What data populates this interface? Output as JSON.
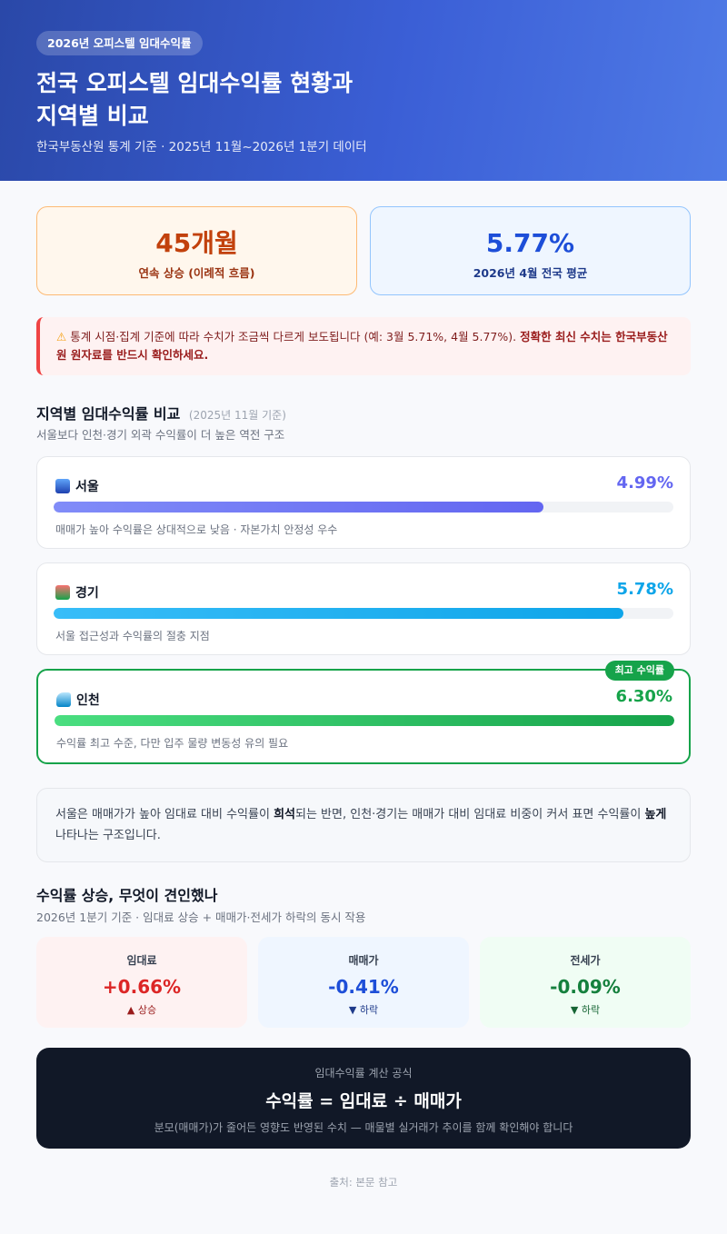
{
  "hero": {
    "badge": "2026년 오피스텔 임대수익률",
    "title_line1": "전국 오피스텔 임대수익률 현황과",
    "title_line2": "지역별 비교",
    "subtitle": "한국부동산원 통계 기준 · 2025년 11월~2026년 1분기 데이터"
  },
  "stats": [
    {
      "value": "45개월",
      "label": "연속 상승 (이례적 흐름)"
    },
    {
      "value": "5.77%",
      "label": "2026년 4월 전국 평균"
    }
  ],
  "warning": {
    "icon": "warning-icon",
    "text": "통계 시점·집계 기준에 따라 수치가 조금씩 다르게 보도됩니다 (예: 3월 5.71%, 4월 5.77%). ",
    "bold": "정확한 최신 수치는 한국부동산원 원자료를 반드시 확인하세요."
  },
  "regions_section": {
    "title": "지역별 임대수익률 비교",
    "title_note": "(2025년 11월 기준)",
    "subtitle": "서울보다 인천·경기 외곽 수익률이 더 높은 역전 구조",
    "best_badge": "최고 수익률",
    "regions": [
      {
        "name": "서울",
        "icon": "city-icon",
        "value": "4.99%",
        "fraction": 0.79,
        "desc": "매매가 높아 수익률은 상대적으로 낮음 · 자본가치 안정성 우수",
        "color": "#6366f1"
      },
      {
        "name": "경기",
        "icon": "house-icon",
        "value": "5.78%",
        "fraction": 0.92,
        "desc": "서울 접근성과 수익률의 절충 지점",
        "color": "#0ea5e9"
      },
      {
        "name": "인천",
        "icon": "wave-icon",
        "value": "6.30%",
        "fraction": 1.0,
        "desc": "수익률 최고 수준, 다만 입주 물량 변동성 유의 필요",
        "color": "#16a34a"
      }
    ]
  },
  "note": {
    "text1": "서울은 매매가가 높아 임대료 대비 수익률이 ",
    "bold1": "희석",
    "text2": "되는 반면, 인천·경기는 매매가 대비 임대료 비중이 커서 표면 수익률이 ",
    "bold2": "높게",
    "text3": " 나타나는 구조입니다."
  },
  "drivers": {
    "title": "수익률 상승, 무엇이 견인했나",
    "subtitle": "2026년 1분기 기준 · 임대료 상승 + 매매가·전세가 하락의 동시 작용",
    "cards": [
      {
        "label": "임대료",
        "value": "+0.66%",
        "trend": "▲ 상승",
        "color": "#dc2626",
        "bg": "#fef2f2"
      },
      {
        "label": "매매가",
        "value": "-0.41%",
        "trend": "▼ 하락",
        "color": "#1d4ed8",
        "bg": "#eff6ff"
      },
      {
        "label": "전세가",
        "value": "-0.09%",
        "trend": "▼ 하락",
        "color": "#15803d",
        "bg": "#f0fdf4"
      }
    ]
  },
  "formula": {
    "label": "임대수익률 계산 공식",
    "equation": "수익률 = 임대료 ÷ 매매가",
    "note": "분모(매매가)가 줄어든 영향도 반영된 수치 — 매물별 실거래가 추이를 함께 확인해야 합니다"
  },
  "source": "출처: 본문 참고"
}
